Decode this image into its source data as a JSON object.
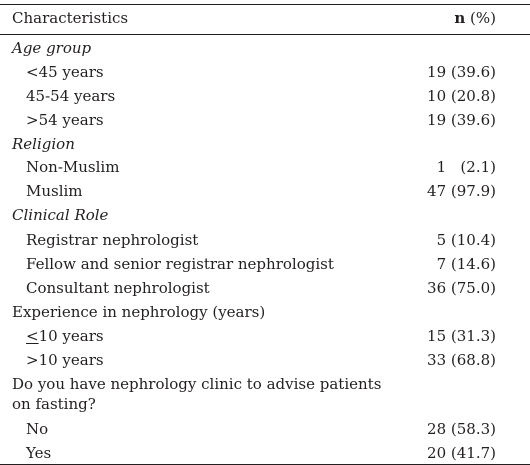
{
  "header": {
    "characteristics": "Characteristics",
    "n_bold": "n",
    "n_pct": " (%)"
  },
  "rows": [
    {
      "label": "Age group",
      "value": ""
    },
    {
      "label": "<45 years",
      "value": "19 (39.6)"
    },
    {
      "label": "45-54 years",
      "value": "10 (20.8)"
    },
    {
      "label": ">54 years",
      "value": "19 (39.6)"
    },
    {
      "label": "Religion",
      "value": ""
    },
    {
      "label": "Non-Muslim",
      "value": "1   (2.1)"
    },
    {
      "label": "Muslim",
      "value": "47 (97.9)"
    },
    {
      "label": "Clinical Role",
      "value": ""
    },
    {
      "label": "Registrar nephrologist",
      "value": "5 (10.4)"
    },
    {
      "label": "Fellow and senior registrar nephrologist",
      "value": "7 (14.6)"
    },
    {
      "label": "Consultant nephrologist",
      "value": "36 (75.0)"
    },
    {
      "label": "Experience in nephrology (years)",
      "value": ""
    },
    {
      "label_prefix": "<",
      "label_rest": "10 years",
      "value": "15 (31.3)"
    },
    {
      "label": ">10 years",
      "value": "33 (68.8)"
    },
    {
      "label_line1": "Do you have nephrology clinic to advise patients",
      "label_line2": "on fasting?",
      "value": ""
    },
    {
      "label": "No",
      "value": "28 (58.3)"
    },
    {
      "label": "Yes",
      "value": "20 (41.7)"
    }
  ]
}
